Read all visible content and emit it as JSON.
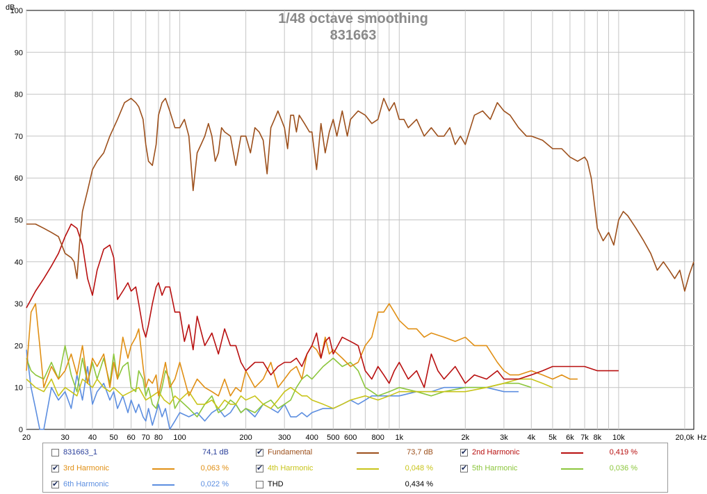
{
  "chart_data": {
    "type": "line",
    "title": "1/48 octave smoothing",
    "subtitle": "831663",
    "ylabel": "dB",
    "xlabel": "Hz",
    "xscale": "log",
    "xlim": [
      20,
      22000
    ],
    "ylim": [
      0,
      100
    ],
    "grid": true,
    "legend_placement": "bottom",
    "y_ticks": [
      "0",
      "10",
      "20",
      "30",
      "40",
      "50",
      "60",
      "70",
      "80",
      "90",
      "100"
    ],
    "x_ticks": [
      {
        "v": 20,
        "l": "20"
      },
      {
        "v": 30,
        "l": "30"
      },
      {
        "v": 40,
        "l": "40"
      },
      {
        "v": 50,
        "l": "50"
      },
      {
        "v": 60,
        "l": "60"
      },
      {
        "v": 70,
        "l": "70"
      },
      {
        "v": 80,
        "l": "80"
      },
      {
        "v": 100,
        "l": "100"
      },
      {
        "v": 200,
        "l": "200"
      },
      {
        "v": 300,
        "l": "300"
      },
      {
        "v": 400,
        "l": "400"
      },
      {
        "v": 500,
        "l": "500"
      },
      {
        "v": 600,
        "l": "600"
      },
      {
        "v": 800,
        "l": "800"
      },
      {
        "v": 1000,
        "l": "1k"
      },
      {
        "v": 2000,
        "l": "2k"
      },
      {
        "v": 3000,
        "l": "3k"
      },
      {
        "v": 4000,
        "l": "4k"
      },
      {
        "v": 5000,
        "l": "5k"
      },
      {
        "v": 6000,
        "l": "6k"
      },
      {
        "v": 7000,
        "l": "7k"
      },
      {
        "v": 8000,
        "l": "8k"
      },
      {
        "v": 10000,
        "l": "10k"
      },
      {
        "v": 20000,
        "l": "20,0k"
      }
    ],
    "series": [
      {
        "name": "Fundamental",
        "color": "#9c4f1b",
        "x": [
          20,
          22,
          24,
          26,
          28,
          30,
          32,
          33,
          34,
          35,
          36,
          38,
          40,
          42,
          45,
          48,
          52,
          56,
          60,
          63,
          65,
          68,
          70,
          72,
          75,
          78,
          80,
          83,
          86,
          90,
          95,
          100,
          105,
          110,
          115,
          120,
          125,
          130,
          135,
          140,
          145,
          150,
          155,
          160,
          170,
          180,
          190,
          200,
          210,
          220,
          230,
          240,
          250,
          260,
          270,
          280,
          290,
          300,
          310,
          320,
          330,
          340,
          350,
          370,
          390,
          400,
          420,
          440,
          460,
          480,
          500,
          520,
          550,
          580,
          600,
          650,
          700,
          750,
          800,
          850,
          900,
          950,
          1000,
          1050,
          1100,
          1200,
          1300,
          1400,
          1500,
          1600,
          1700,
          1800,
          1900,
          2000,
          2200,
          2400,
          2600,
          2800,
          3000,
          3200,
          3500,
          3800,
          4000,
          4500,
          5000,
          5500,
          6000,
          6500,
          7000,
          7200,
          7500,
          8000,
          8500,
          9000,
          9500,
          10000,
          10500,
          11000,
          12000,
          13000,
          14000,
          15000,
          16000,
          17000,
          18000,
          19000,
          20000,
          21000,
          22000
        ],
        "y": [
          49,
          49,
          48,
          47,
          46,
          42,
          41,
          40,
          36,
          45,
          52,
          57,
          62,
          64,
          66,
          70,
          74,
          78,
          79,
          78,
          77,
          74,
          68,
          64,
          63,
          68,
          75,
          78,
          79,
          76,
          72,
          72,
          74,
          70,
          57,
          66,
          68,
          70,
          73,
          70,
          64,
          66,
          72,
          71,
          70,
          63,
          70,
          70,
          66,
          72,
          71,
          69,
          61,
          72,
          74,
          76,
          74,
          72,
          67,
          75,
          75,
          71,
          75,
          73,
          71,
          71,
          62,
          73,
          66,
          71,
          74,
          70,
          76,
          70,
          74,
          76,
          75,
          73,
          74,
          79,
          76,
          78,
          74,
          74,
          72,
          74,
          70,
          72,
          70,
          70,
          72,
          68,
          70,
          68,
          75,
          76,
          74,
          78,
          76,
          75,
          72,
          70,
          70,
          69,
          67,
          67,
          65,
          64,
          65,
          64,
          60,
          48,
          45,
          47,
          44,
          50,
          52,
          51,
          48,
          45,
          42,
          38,
          40,
          38,
          36,
          38,
          33,
          37,
          40
        ]
      },
      {
        "name": "2nd Harmonic",
        "color": "#b80f0f",
        "x": [
          20,
          22,
          24,
          26,
          28,
          30,
          32,
          34,
          36,
          38,
          40,
          42,
          45,
          48,
          50,
          52,
          55,
          58,
          60,
          63,
          65,
          68,
          70,
          72,
          75,
          78,
          80,
          83,
          86,
          90,
          95,
          100,
          105,
          110,
          115,
          120,
          130,
          140,
          150,
          160,
          170,
          180,
          190,
          200,
          220,
          240,
          260,
          280,
          300,
          320,
          340,
          360,
          380,
          400,
          420,
          440,
          460,
          480,
          500,
          550,
          600,
          650,
          700,
          750,
          800,
          850,
          900,
          950,
          1000,
          1100,
          1200,
          1300,
          1400,
          1500,
          1600,
          1800,
          2000,
          2200,
          2500,
          2800,
          3000,
          3500,
          4000,
          4500,
          5000,
          5500,
          6000,
          7000,
          8000,
          9000,
          10000
        ],
        "y": [
          29,
          33,
          36,
          39,
          42,
          46,
          49,
          48,
          44,
          36,
          32,
          38,
          43,
          44,
          41,
          31,
          33,
          35,
          33,
          34,
          30,
          24,
          22,
          25,
          30,
          34,
          35,
          32,
          34,
          34,
          28,
          28,
          21,
          25,
          19,
          27,
          20,
          23,
          18,
          24,
          20,
          20,
          16,
          14,
          16,
          16,
          13,
          15,
          16,
          16,
          17,
          15,
          18,
          20,
          23,
          17,
          21,
          22,
          18,
          22,
          21,
          20,
          14,
          12,
          15,
          13,
          11,
          14,
          16,
          12,
          14,
          10,
          18,
          14,
          12,
          15,
          11,
          13,
          12,
          14,
          12,
          12,
          13,
          14,
          15,
          15,
          15,
          15,
          14,
          14,
          14
        ]
      },
      {
        "name": "3rd Harmonic",
        "color": "#e08f14",
        "x": [
          20,
          21,
          22,
          23,
          24,
          26,
          28,
          30,
          32,
          34,
          36,
          38,
          40,
          42,
          45,
          48,
          50,
          52,
          55,
          58,
          60,
          63,
          65,
          68,
          70,
          72,
          75,
          78,
          80,
          83,
          86,
          90,
          95,
          100,
          110,
          120,
          130,
          140,
          150,
          160,
          170,
          180,
          190,
          200,
          220,
          240,
          260,
          280,
          300,
          320,
          340,
          360,
          380,
          400,
          420,
          440,
          460,
          480,
          500,
          550,
          600,
          650,
          700,
          750,
          800,
          850,
          900,
          950,
          1000,
          1100,
          1200,
          1300,
          1400,
          1600,
          1800,
          2000,
          2200,
          2500,
          2800,
          3000,
          3200,
          3500,
          4000,
          4500,
          5000,
          5500,
          6000,
          6500
        ],
        "y": [
          14,
          28,
          30,
          20,
          10,
          15,
          12,
          14,
          18,
          13,
          20,
          11,
          17,
          15,
          18,
          10,
          16,
          12,
          22,
          17,
          20,
          22,
          24,
          15,
          10,
          12,
          11,
          13,
          8,
          12,
          16,
          10,
          12,
          16,
          8,
          12,
          10,
          9,
          8,
          12,
          8,
          10,
          9,
          14,
          10,
          12,
          16,
          10,
          12,
          14,
          15,
          12,
          18,
          20,
          19,
          17,
          22,
          18,
          19,
          17,
          15,
          16,
          20,
          22,
          28,
          28,
          30,
          28,
          26,
          24,
          24,
          22,
          23,
          22,
          21,
          22,
          20,
          20,
          16,
          14,
          13,
          13,
          14,
          13,
          12,
          13,
          12,
          12
        ]
      },
      {
        "name": "4th Harmonic",
        "color": "#c8c41a",
        "x": [
          20,
          22,
          24,
          26,
          28,
          30,
          32,
          34,
          36,
          38,
          40,
          42,
          45,
          48,
          50,
          55,
          60,
          65,
          70,
          75,
          80,
          85,
          90,
          95,
          100,
          110,
          120,
          130,
          140,
          150,
          160,
          170,
          180,
          190,
          200,
          220,
          240,
          260,
          280,
          300,
          320,
          340,
          360,
          380,
          400,
          450,
          500,
          550,
          600,
          700,
          800,
          900,
          1000,
          1200,
          1400,
          1600,
          2000,
          2500,
          3000,
          3500,
          4000,
          4500,
          5000
        ],
        "y": [
          12,
          10,
          9,
          12,
          8,
          10,
          9,
          8,
          12,
          11,
          10,
          12,
          10,
          9,
          10,
          8,
          9,
          10,
          7,
          8,
          9,
          7,
          6,
          8,
          7,
          9,
          6,
          6,
          7,
          5,
          7,
          6,
          6,
          8,
          7,
          8,
          6,
          5,
          7,
          9,
          10,
          9,
          8,
          8,
          7,
          6,
          5,
          6,
          7,
          8,
          7,
          8,
          9,
          9,
          9,
          9,
          9,
          10,
          11,
          12,
          12,
          11,
          10
        ]
      },
      {
        "name": "5th Harmonic",
        "color": "#8cc63c",
        "x": [
          20,
          21,
          22,
          24,
          26,
          28,
          30,
          32,
          34,
          36,
          38,
          40,
          42,
          45,
          48,
          50,
          52,
          55,
          58,
          60,
          63,
          65,
          68,
          70,
          72,
          75,
          78,
          80,
          83,
          86,
          90,
          95,
          100,
          110,
          120,
          130,
          140,
          150,
          160,
          170,
          180,
          190,
          200,
          220,
          240,
          260,
          280,
          300,
          320,
          340,
          360,
          380,
          400,
          450,
          500,
          550,
          600,
          650,
          700,
          750,
          800,
          900,
          1000,
          1200,
          1400,
          1600,
          2000,
          2500,
          3000,
          3500,
          4000
        ],
        "y": [
          17,
          14,
          13,
          12,
          16,
          12,
          20,
          13,
          9,
          17,
          11,
          16,
          12,
          17,
          11,
          18,
          12,
          15,
          16,
          10,
          9,
          14,
          12,
          8,
          10,
          6,
          5,
          7,
          10,
          14,
          12,
          5,
          7,
          5,
          3,
          6,
          8,
          4,
          5,
          7,
          6,
          4,
          5,
          4,
          6,
          7,
          5,
          6,
          7,
          10,
          12,
          13,
          12,
          15,
          17,
          15,
          16,
          14,
          10,
          9,
          8,
          9,
          10,
          9,
          8,
          9,
          10,
          10,
          11,
          11,
          10
        ]
      },
      {
        "name": "6th Harmonic",
        "color": "#5c8ee0",
        "x": [
          20,
          21,
          22,
          23,
          24,
          26,
          28,
          30,
          32,
          34,
          36,
          38,
          40,
          42,
          45,
          48,
          50,
          52,
          55,
          58,
          60,
          63,
          65,
          68,
          70,
          72,
          75,
          78,
          80,
          83,
          86,
          90,
          95,
          100,
          110,
          120,
          130,
          140,
          150,
          160,
          170,
          180,
          190,
          200,
          220,
          240,
          260,
          280,
          300,
          320,
          340,
          360,
          380,
          400,
          450,
          500,
          550,
          600,
          650,
          700,
          750,
          800,
          900,
          1000,
          1200,
          1400,
          1600,
          2000,
          2500,
          3000,
          3500
        ],
        "y": [
          19,
          10,
          5,
          0,
          0,
          10,
          7,
          9,
          5,
          13,
          7,
          15,
          6,
          9,
          11,
          7,
          9,
          5,
          8,
          4,
          7,
          4,
          6,
          3,
          2,
          5,
          1,
          4,
          6,
          3,
          5,
          0,
          2,
          4,
          3,
          4,
          2,
          4,
          5,
          3,
          4,
          6,
          4,
          5,
          3,
          6,
          5,
          4,
          6,
          3,
          3,
          4,
          3,
          4,
          5,
          5,
          6,
          7,
          6,
          7,
          8,
          8,
          8,
          8,
          9,
          9,
          10,
          10,
          10,
          9,
          9
        ]
      }
    ]
  },
  "legend": {
    "rows": [
      [
        {
          "checked": false,
          "name": "831663_1",
          "value": "74,1 dB",
          "color": "#2a3f9a",
          "line": ""
        },
        {
          "checked": true,
          "name": "Fundamental",
          "value": "73,7 dB",
          "color": "#9c4f1b",
          "line": "#9c4f1b"
        },
        {
          "checked": true,
          "name": "2nd Harmonic",
          "value": "0,419 %",
          "color": "#b80f0f",
          "line": "#b80f0f"
        }
      ],
      [
        {
          "checked": true,
          "name": "3rd Harmonic",
          "value": "0,063 %",
          "color": "#e08f14",
          "line": "#e08f14"
        },
        {
          "checked": true,
          "name": "4th Harmonic",
          "value": "0,048 %",
          "color": "#c8c41a",
          "line": "#c8c41a"
        },
        {
          "checked": true,
          "name": "5th Harmonic",
          "value": "0,036 %",
          "color": "#8cc63c",
          "line": "#8cc63c"
        }
      ],
      [
        {
          "checked": true,
          "name": "6th Harmonic",
          "value": "0,022 %",
          "color": "#5c8ee0",
          "line": "#5c8ee0"
        },
        {
          "checked": false,
          "name": "THD",
          "value": "0,434 %",
          "color": "#000000",
          "line": ""
        }
      ]
    ]
  }
}
